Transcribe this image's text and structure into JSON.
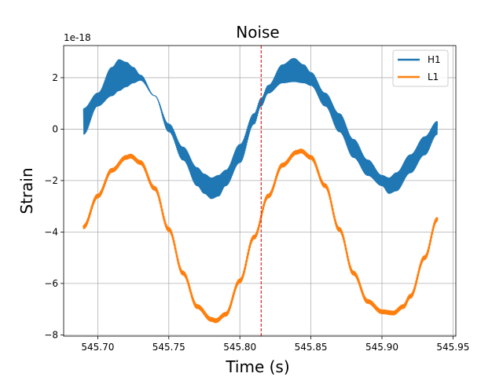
{
  "chart_data": {
    "type": "line",
    "title": "Noise",
    "xlabel": "Time (s)",
    "ylabel": "Strain",
    "offset_text": "1e-18",
    "xlim": [
      545.676,
      545.952
    ],
    "ylim": [
      -8.05,
      3.25
    ],
    "x_ticks": [
      545.7,
      545.75,
      545.8,
      545.85,
      545.9,
      545.95
    ],
    "x_tick_labels": [
      "545.70",
      "545.75",
      "545.80",
      "545.85",
      "545.90",
      "545.95"
    ],
    "y_ticks": [
      -8,
      -6,
      -4,
      -2,
      0,
      2
    ],
    "y_tick_labels": [
      "−8",
      "−6",
      "−4",
      "−2",
      "0",
      "2"
    ],
    "grid": true,
    "legend_position": "top-right",
    "marker_line": {
      "x": 545.815,
      "color": "#d62728",
      "style": "dashed"
    },
    "series": [
      {
        "name": "H1",
        "color": "#1f77b4",
        "oscillating_band": true,
        "x": [
          545.69,
          545.7,
          545.71,
          545.715,
          545.72,
          545.725,
          545.73,
          545.74,
          545.75,
          545.76,
          545.77,
          545.775,
          545.78,
          545.785,
          545.79,
          545.8,
          545.81,
          545.815,
          545.82,
          545.83,
          545.838,
          545.845,
          545.85,
          545.86,
          545.87,
          545.88,
          545.89,
          545.9,
          545.905,
          545.91,
          545.92,
          545.93,
          545.939
        ],
        "upper": [
          0.8,
          1.4,
          2.4,
          2.7,
          2.6,
          2.4,
          2.1,
          1.3,
          0.2,
          -0.7,
          -1.5,
          -1.75,
          -1.9,
          -1.8,
          -1.6,
          -0.6,
          0.6,
          1.2,
          1.7,
          2.5,
          2.75,
          2.5,
          2.2,
          1.4,
          0.6,
          -0.4,
          -1.2,
          -1.8,
          -1.9,
          -1.7,
          -1.0,
          -0.3,
          0.3
        ],
        "lower": [
          -0.2,
          0.9,
          1.3,
          1.5,
          1.65,
          1.8,
          1.9,
          1.3,
          -0.1,
          -1.2,
          -2.2,
          -2.5,
          -2.7,
          -2.6,
          -2.2,
          -1.3,
          0.2,
          0.9,
          1.4,
          1.8,
          1.85,
          1.8,
          1.7,
          0.9,
          -0.1,
          -1.1,
          -1.8,
          -2.2,
          -2.5,
          -2.4,
          -1.7,
          -1.0,
          -0.2
        ]
      },
      {
        "name": "L1",
        "color": "#ff7f0e",
        "oscillating_band": false,
        "x": [
          545.69,
          545.7,
          545.71,
          545.72,
          545.723,
          545.73,
          545.74,
          545.75,
          545.76,
          545.77,
          545.78,
          545.783,
          545.79,
          545.8,
          545.81,
          545.82,
          545.83,
          545.84,
          545.843,
          545.85,
          545.86,
          545.87,
          545.88,
          545.89,
          545.9,
          545.908,
          545.915,
          545.92,
          545.93,
          545.939
        ],
        "y": [
          -3.8,
          -2.6,
          -1.6,
          -1.1,
          -1.05,
          -1.3,
          -2.3,
          -3.9,
          -5.6,
          -6.9,
          -7.4,
          -7.45,
          -7.2,
          -5.9,
          -4.2,
          -2.6,
          -1.4,
          -0.9,
          -0.85,
          -1.1,
          -2.2,
          -3.9,
          -5.6,
          -6.7,
          -7.1,
          -7.15,
          -6.9,
          -6.5,
          -5.0,
          -3.5
        ]
      }
    ]
  }
}
